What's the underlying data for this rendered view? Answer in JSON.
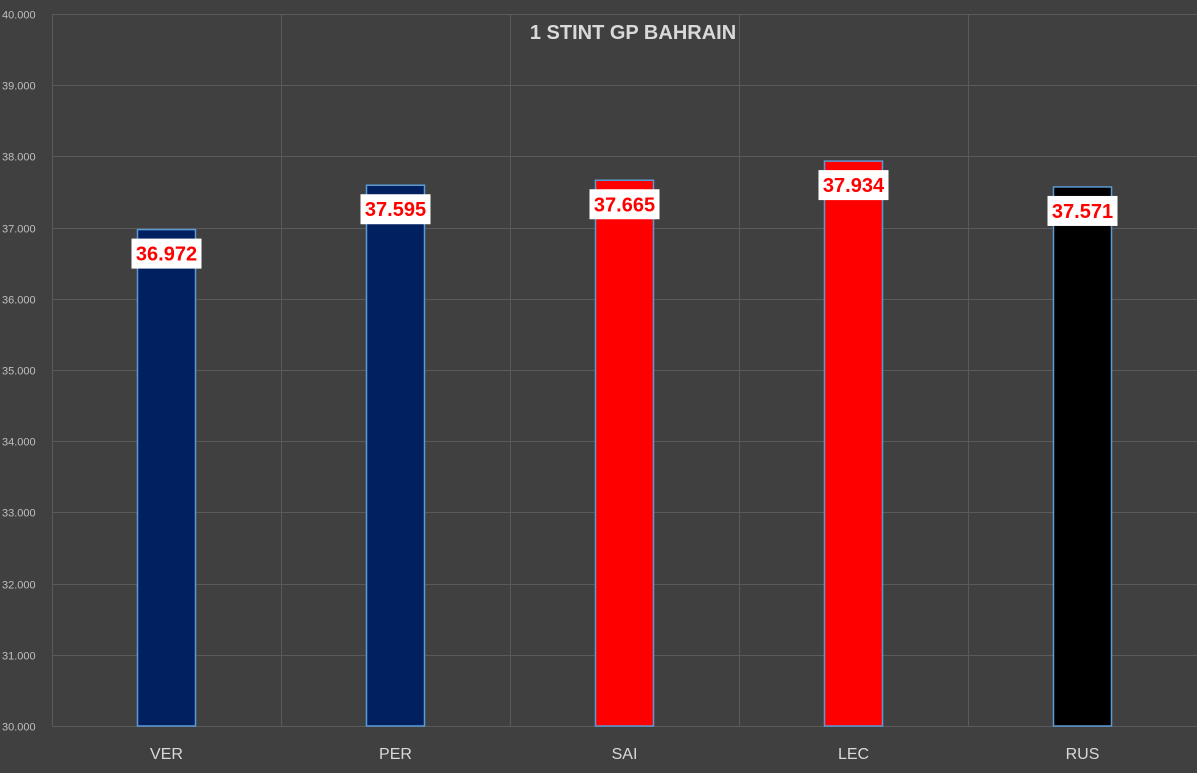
{
  "chart_data": {
    "type": "bar",
    "title": "1 STINT GP BAHRAIN",
    "xlabel": "",
    "ylabel": "",
    "categories": [
      "VER",
      "PER",
      "SAI",
      "LEC",
      "RUS"
    ],
    "values": [
      36.972,
      37.595,
      37.665,
      37.934,
      37.571
    ],
    "data_labels": [
      "36.972",
      "37.595",
      "37.665",
      "37.934",
      "37.571"
    ],
    "bar_colors": [
      "#002060",
      "#002060",
      "#ff0000",
      "#ff0000",
      "#000000"
    ],
    "ylim": [
      30,
      40
    ],
    "yticks": [
      30,
      31,
      32,
      33,
      34,
      35,
      36,
      37,
      38,
      39,
      40
    ],
    "ytick_labels": [
      "30.000",
      "31.000",
      "32.000",
      "33.000",
      "34.000",
      "35.000",
      "36.000",
      "37.000",
      "38.000",
      "39.000",
      "40.000"
    ],
    "grid": true,
    "legend": "none",
    "colors": {
      "background": "#404040",
      "gridline": "#5a5a5a",
      "data_label_text": "#ff0000",
      "data_label_box": "#ffffff",
      "bar_outline": "#5b9bd5"
    }
  }
}
